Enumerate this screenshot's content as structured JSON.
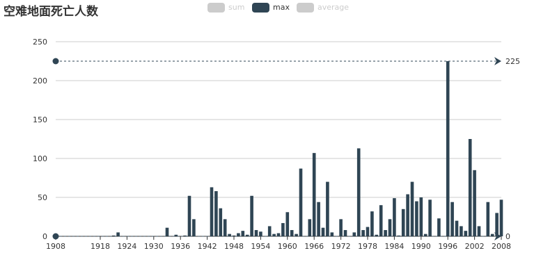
{
  "title": "空难地面死亡人数",
  "legend": [
    {
      "name": "sum",
      "active": false
    },
    {
      "name": "max",
      "active": true
    },
    {
      "name": "average",
      "active": false
    }
  ],
  "colors": {
    "bar": "#2f4554",
    "inactive": "#cccccc",
    "grid": "#cccccc",
    "axis": "#333333"
  },
  "chart_data": {
    "type": "bar",
    "title": "空难地面死亡人数",
    "series_name": "max",
    "x": [
      1908,
      1909,
      1910,
      1911,
      1912,
      1913,
      1914,
      1915,
      1916,
      1917,
      1918,
      1919,
      1920,
      1921,
      1922,
      1923,
      1924,
      1925,
      1926,
      1927,
      1928,
      1929,
      1930,
      1931,
      1932,
      1933,
      1934,
      1935,
      1936,
      1937,
      1938,
      1939,
      1940,
      1941,
      1942,
      1943,
      1944,
      1945,
      1946,
      1947,
      1948,
      1949,
      1950,
      1951,
      1952,
      1953,
      1954,
      1955,
      1956,
      1957,
      1958,
      1959,
      1960,
      1961,
      1962,
      1963,
      1964,
      1965,
      1966,
      1967,
      1968,
      1969,
      1970,
      1971,
      1972,
      1973,
      1974,
      1975,
      1976,
      1977,
      1978,
      1979,
      1980,
      1981,
      1982,
      1983,
      1984,
      1985,
      1986,
      1987,
      1988,
      1989,
      1990,
      1991,
      1992,
      1993,
      1994,
      1995,
      1996,
      1997,
      1998,
      1999,
      2000,
      2001,
      2002,
      2003,
      2004,
      2005,
      2006,
      2007,
      2008
    ],
    "values": [
      0,
      0,
      0,
      0,
      0,
      0,
      0,
      0,
      0,
      0,
      0,
      0,
      0,
      1,
      5,
      0,
      0,
      0,
      0,
      0,
      0,
      0,
      0,
      0,
      0,
      11,
      0,
      2,
      0,
      1,
      52,
      22,
      0,
      0,
      0,
      63,
      58,
      36,
      22,
      3,
      1,
      4,
      7,
      2,
      52,
      8,
      6,
      0,
      13,
      3,
      4,
      17,
      31,
      8,
      3,
      87,
      0,
      22,
      107,
      44,
      11,
      70,
      5,
      0,
      22,
      8,
      0,
      5,
      113,
      8,
      12,
      32,
      2,
      40,
      8,
      22,
      49,
      1,
      35,
      54,
      70,
      45,
      50,
      3,
      47,
      0,
      23,
      0,
      225,
      44,
      20,
      13,
      7,
      125,
      85,
      13,
      0,
      44,
      3,
      30,
      47
    ],
    "xticks": [
      "1908",
      "1918",
      "1924",
      "1930",
      "1936",
      "1942",
      "1948",
      "1954",
      "1960",
      "1966",
      "1972",
      "1978",
      "1984",
      "1990",
      "1996",
      "2002",
      "2008"
    ],
    "yticks": [
      "0",
      "50",
      "100",
      "150",
      "200",
      "250"
    ],
    "ylim": [
      0,
      250
    ],
    "markers": [
      {
        "label": "225",
        "value": 225
      },
      {
        "label": "0",
        "value": 0
      }
    ],
    "grid": true
  }
}
